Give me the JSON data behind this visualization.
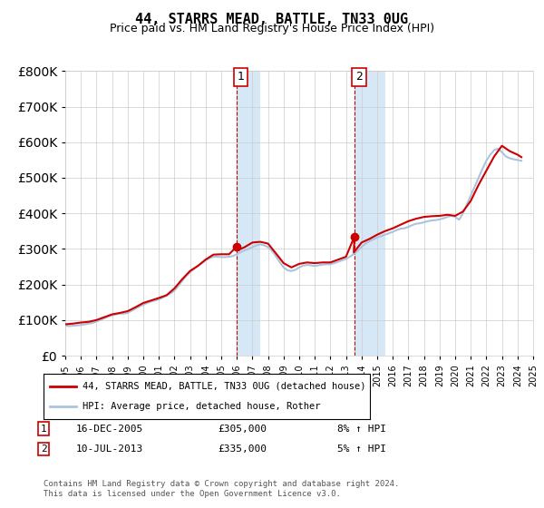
{
  "title": "44, STARRS MEAD, BATTLE, TN33 0UG",
  "subtitle": "Price paid vs. HM Land Registry's House Price Index (HPI)",
  "ylim": [
    0,
    800000
  ],
  "yticks": [
    0,
    100000,
    200000,
    300000,
    400000,
    500000,
    600000,
    700000,
    800000
  ],
  "background_color": "#ffffff",
  "plot_bg_color": "#ffffff",
  "grid_color": "#cccccc",
  "hpi_color": "#aac4dd",
  "price_color": "#cc0000",
  "highlight_bg": "#d6e8f5",
  "transaction1": {
    "date": "16-DEC-2005",
    "price": 305000,
    "label": "1",
    "hpi_pct": "8% ↑ HPI"
  },
  "transaction2": {
    "date": "10-JUL-2013",
    "price": 335000,
    "label": "2",
    "hpi_pct": "5% ↑ HPI"
  },
  "legend_line1": "44, STARRS MEAD, BATTLE, TN33 0UG (detached house)",
  "legend_line2": "HPI: Average price, detached house, Rother",
  "footnote": "Contains HM Land Registry data © Crown copyright and database right 2024.\nThis data is licensed under the Open Government Licence v3.0.",
  "hpi_data": {
    "years": [
      1995.0,
      1995.25,
      1995.5,
      1995.75,
      1996.0,
      1996.25,
      1996.5,
      1996.75,
      1997.0,
      1997.25,
      1997.5,
      1997.75,
      1998.0,
      1998.25,
      1998.5,
      1998.75,
      1999.0,
      1999.25,
      1999.5,
      1999.75,
      2000.0,
      2000.25,
      2000.5,
      2000.75,
      2001.0,
      2001.25,
      2001.5,
      2001.75,
      2002.0,
      2002.25,
      2002.5,
      2002.75,
      2003.0,
      2003.25,
      2003.5,
      2003.75,
      2004.0,
      2004.25,
      2004.5,
      2004.75,
      2005.0,
      2005.25,
      2005.5,
      2005.75,
      2006.0,
      2006.25,
      2006.5,
      2006.75,
      2007.0,
      2007.25,
      2007.5,
      2007.75,
      2008.0,
      2008.25,
      2008.5,
      2008.75,
      2009.0,
      2009.25,
      2009.5,
      2009.75,
      2010.0,
      2010.25,
      2010.5,
      2010.75,
      2011.0,
      2011.25,
      2011.5,
      2011.75,
      2012.0,
      2012.25,
      2012.5,
      2012.75,
      2013.0,
      2013.25,
      2013.5,
      2013.75,
      2014.0,
      2014.25,
      2014.5,
      2014.75,
      2015.0,
      2015.25,
      2015.5,
      2015.75,
      2016.0,
      2016.25,
      2016.5,
      2016.75,
      2017.0,
      2017.25,
      2017.5,
      2017.75,
      2018.0,
      2018.25,
      2018.5,
      2018.75,
      2019.0,
      2019.25,
      2019.5,
      2019.75,
      2020.0,
      2020.25,
      2020.5,
      2020.75,
      2021.0,
      2021.25,
      2021.5,
      2021.75,
      2022.0,
      2022.25,
      2022.5,
      2022.75,
      2023.0,
      2023.25,
      2023.5,
      2023.75,
      2024.0,
      2024.25
    ],
    "values": [
      84000,
      83000,
      84000,
      85000,
      86000,
      88000,
      90000,
      92000,
      96000,
      100000,
      105000,
      110000,
      113000,
      116000,
      118000,
      118000,
      120000,
      126000,
      132000,
      138000,
      143000,
      148000,
      152000,
      155000,
      158000,
      163000,
      169000,
      175000,
      183000,
      196000,
      210000,
      224000,
      234000,
      244000,
      253000,
      260000,
      268000,
      274000,
      278000,
      278000,
      277000,
      277000,
      278000,
      280000,
      285000,
      291000,
      296000,
      300000,
      305000,
      310000,
      313000,
      310000,
      305000,
      295000,
      280000,
      263000,
      248000,
      240000,
      238000,
      241000,
      248000,
      253000,
      255000,
      254000,
      252000,
      254000,
      256000,
      257000,
      257000,
      260000,
      264000,
      268000,
      272000,
      278000,
      286000,
      295000,
      305000,
      315000,
      322000,
      327000,
      332000,
      336000,
      340000,
      344000,
      348000,
      353000,
      357000,
      358000,
      362000,
      367000,
      371000,
      372000,
      375000,
      378000,
      380000,
      381000,
      383000,
      386000,
      390000,
      394000,
      390000,
      382000,
      400000,
      425000,
      450000,
      475000,
      500000,
      525000,
      548000,
      565000,
      578000,
      582000,
      572000,
      560000,
      555000,
      552000,
      550000,
      548000
    ]
  },
  "price_data": {
    "years": [
      1995.0,
      1995.5,
      1996.0,
      1996.5,
      1997.0,
      1997.5,
      1998.0,
      1998.5,
      1999.0,
      1999.5,
      2000.0,
      2000.5,
      2001.0,
      2001.5,
      2002.0,
      2002.5,
      2003.0,
      2003.5,
      2004.0,
      2004.5,
      2005.0,
      2005.5,
      2005.96,
      2006.0,
      2006.5,
      2007.0,
      2007.5,
      2008.0,
      2008.5,
      2009.0,
      2009.5,
      2010.0,
      2010.5,
      2011.0,
      2011.5,
      2012.0,
      2012.5,
      2013.0,
      2013.54,
      2013.5,
      2014.0,
      2014.5,
      2015.0,
      2015.5,
      2016.0,
      2016.5,
      2017.0,
      2017.5,
      2018.0,
      2018.5,
      2019.0,
      2019.5,
      2020.0,
      2020.5,
      2021.0,
      2021.5,
      2022.0,
      2022.5,
      2023.0,
      2023.5,
      2024.0,
      2024.25
    ],
    "values": [
      88000,
      90000,
      93000,
      95000,
      100000,
      108000,
      116000,
      120000,
      125000,
      136000,
      148000,
      155000,
      162000,
      170000,
      189000,
      215000,
      238000,
      252000,
      270000,
      284000,
      285000,
      285000,
      305000,
      295000,
      305000,
      318000,
      320000,
      315000,
      288000,
      260000,
      248000,
      258000,
      262000,
      260000,
      262000,
      262000,
      270000,
      278000,
      335000,
      290000,
      318000,
      328000,
      340000,
      350000,
      358000,
      368000,
      378000,
      385000,
      390000,
      392000,
      393000,
      396000,
      393000,
      405000,
      435000,
      480000,
      520000,
      560000,
      590000,
      575000,
      565000,
      558000
    ]
  },
  "transaction1_x": 2005.96,
  "transaction1_y": 305000,
  "transaction2_x": 2013.54,
  "transaction2_y": 335000,
  "shade_x1_start": 2005.96,
  "shade_x1_end": 2007.5,
  "shade_x2_start": 2013.54,
  "shade_x2_end": 2015.5,
  "xmin": 1995.0,
  "xmax": 2025.0
}
